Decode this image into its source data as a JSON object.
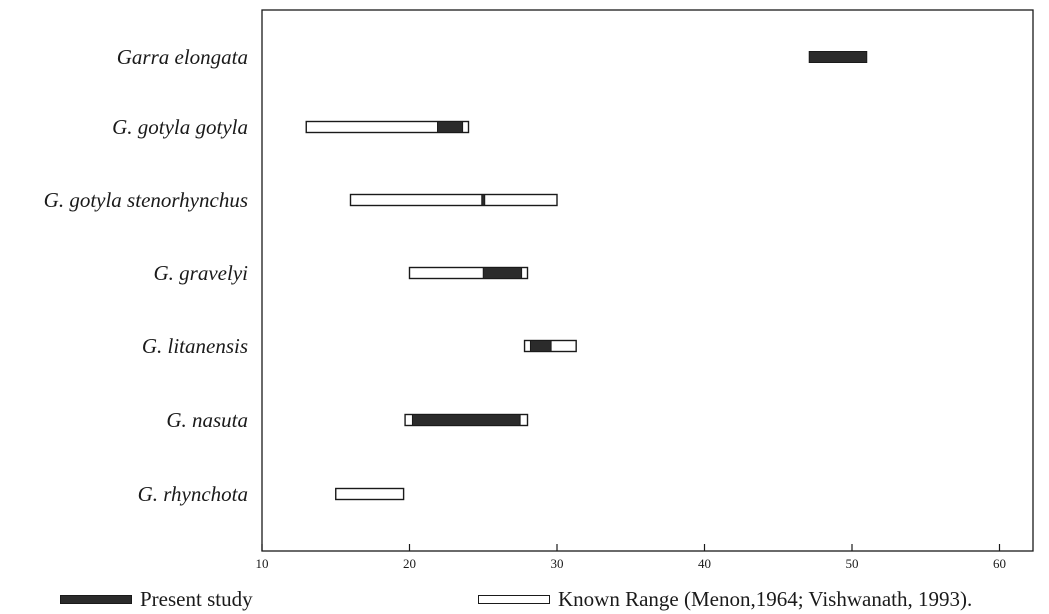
{
  "chart_data": {
    "type": "bar",
    "orientation": "horizontal-range",
    "categories": [
      "Garra elongata",
      "G. gotyla gotyla",
      "G. gotyla stenorhynchus",
      "G. gravelyi",
      "G. litanensis",
      "G. nasuta",
      "G. rhynchota"
    ],
    "series": [
      {
        "name": "Known Range (Menon,1964; Vishwanath, 1993).",
        "style": "open",
        "ranges": [
          null,
          [
            13,
            24
          ],
          [
            16,
            30
          ],
          [
            20,
            28
          ],
          [
            27.8,
            31.3
          ],
          [
            19.7,
            28
          ],
          [
            15,
            19.6
          ]
        ]
      },
      {
        "name": "Present study",
        "style": "filled",
        "ranges": [
          [
            47.1,
            51
          ],
          [
            21.9,
            23.6
          ],
          [
            24.9,
            25.1
          ],
          [
            25,
            27.6
          ],
          [
            28.2,
            29.6
          ],
          [
            20.2,
            27.5
          ],
          null
        ]
      }
    ],
    "xticks": [
      10,
      20,
      30,
      40,
      50,
      60
    ],
    "xlim": [
      10,
      61.3
    ],
    "title": "",
    "xlabel": "",
    "ylabel": "",
    "grid": false,
    "legend_position": "bottom",
    "colors": {
      "filled": "#2b2b2b",
      "open": "#ffffff",
      "stroke": "#1a1a1a"
    }
  },
  "legend": {
    "present_study": "Present study",
    "known_range": "Known Range (Menon,1964; Vishwanath, 1993)."
  }
}
